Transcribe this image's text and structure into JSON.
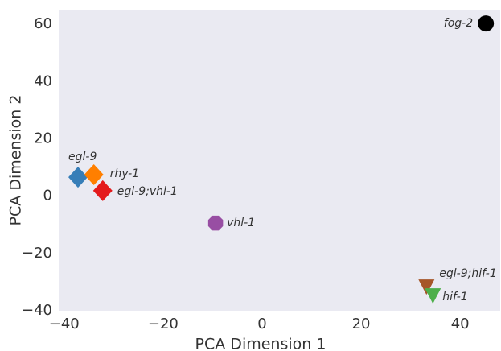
{
  "chart_data": {
    "type": "scatter",
    "xlabel": "PCA Dimension 1",
    "ylabel": "PCA Dimension 2",
    "labels": [
      "fog-2",
      "egl-9",
      "rhy-1",
      "egl-9;vhl-1",
      "vhl-1",
      "egl-9;hif-1",
      "hif-1"
    ],
    "x": [
      45.2,
      -37.2,
      -34.0,
      -32.2,
      -9.4,
      33.2,
      34.5
    ],
    "values": [
      60.3,
      6.6,
      7.5,
      1.9,
      -9.4,
      -31.6,
      -34.7
    ],
    "colors": [
      "#000000",
      "#377eb8",
      "#ff7f00",
      "#e41a1c",
      "#984ea3",
      "#a65628",
      "#4daf4a"
    ],
    "markers": [
      "circle",
      "diamond",
      "diamond",
      "diamond",
      "octagon",
      "triangle-down",
      "triangle-down"
    ],
    "xlim": [
      -41.1,
      48.1
    ],
    "ylim": [
      -40,
      65.1
    ],
    "xticks": [
      {
        "value": -40,
        "label": "−40"
      },
      {
        "value": -20,
        "label": "−20"
      },
      0,
      20,
      40
    ],
    "yticks": [
      {
        "value": -40,
        "label": "−40"
      },
      {
        "value": -20,
        "label": "−20"
      },
      0,
      20,
      40,
      60
    ],
    "grid": false
  }
}
